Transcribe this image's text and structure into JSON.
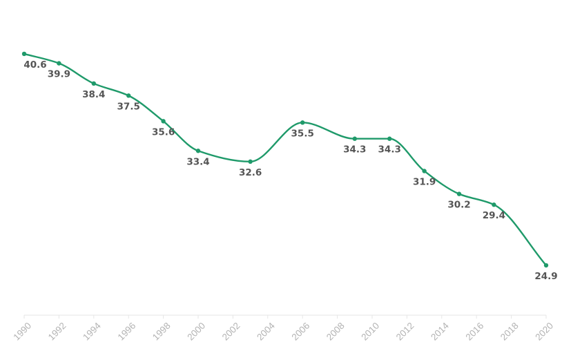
{
  "chart_data": {
    "type": "line",
    "title": "",
    "xlabel": "",
    "ylabel": "",
    "xlim": [
      1990,
      2020
    ],
    "ylim": [
      21.2,
      44.6
    ],
    "grid": false,
    "legend": "none",
    "line_color": "#1f9a6a",
    "x_ticks": [
      "1990",
      "1992",
      "1994",
      "1996",
      "1998",
      "2000",
      "2002",
      "2004",
      "2006",
      "2008",
      "2010",
      "2012",
      "2014",
      "2016",
      "2018",
      "2020"
    ],
    "series": [
      {
        "x": [
          1990,
          1992,
          1994,
          1996,
          1998,
          2000,
          2003,
          2006,
          2009,
          2011,
          2013,
          2015,
          2017,
          2020
        ],
        "values": [
          40.6,
          39.9,
          38.4,
          37.5,
          35.6,
          33.4,
          32.6,
          35.5,
          34.3,
          34.3,
          31.9,
          30.2,
          29.4,
          24.9
        ],
        "labels": [
          "40.6",
          "39.9",
          "38.4",
          "37.5",
          "35.6",
          "33.4",
          "32.6",
          "35.5",
          "34.3",
          "34.3",
          "31.9",
          "30.2",
          "29.4",
          "24.9"
        ]
      }
    ]
  }
}
